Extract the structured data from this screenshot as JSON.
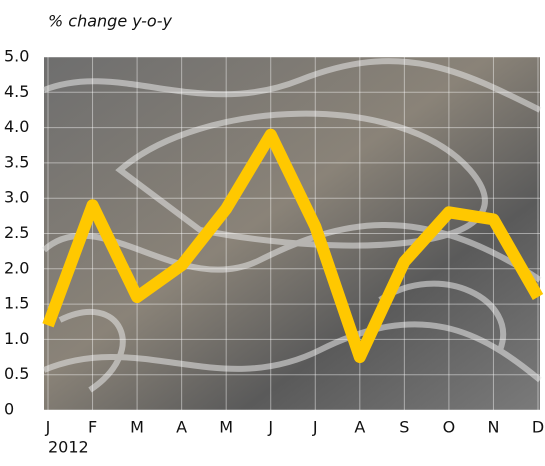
{
  "chart_data": {
    "type": "line",
    "title": "% change y-o-y",
    "year_label": "2012",
    "categories": [
      "J",
      "F",
      "M",
      "A",
      "M",
      "J",
      "J",
      "A",
      "S",
      "O",
      "N",
      "D"
    ],
    "series": [
      {
        "name": "% change y-o-y",
        "color": "#ffc800",
        "values": [
          1.2,
          2.9,
          1.6,
          2.05,
          2.85,
          3.9,
          2.6,
          0.75,
          2.1,
          2.8,
          2.7,
          1.6
        ]
      }
    ],
    "ylim": [
      0,
      5
    ],
    "yticks": [
      0,
      0.5,
      {
        "value": 1,
        "label": "1.0"
      },
      1.5,
      {
        "value": 2,
        "label": "2.0"
      },
      2.5,
      {
        "value": 3,
        "label": "3.0"
      },
      3.5,
      {
        "value": 4,
        "label": "4.0"
      },
      4.5,
      {
        "value": 5,
        "label": "5.0"
      }
    ],
    "grid": true
  }
}
